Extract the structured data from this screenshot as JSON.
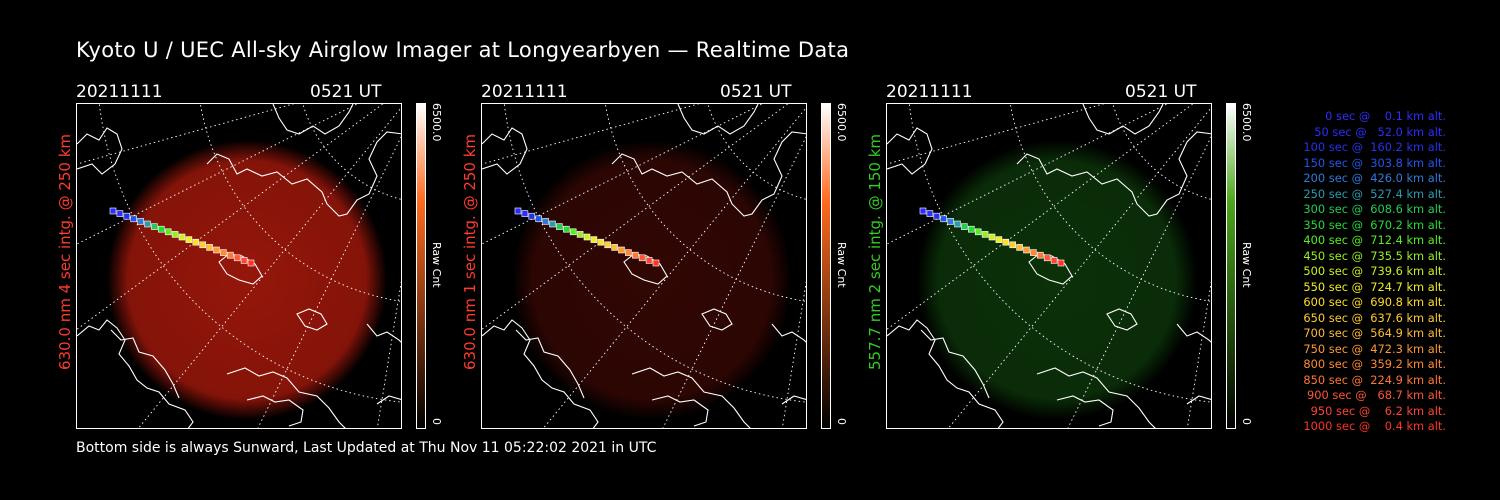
{
  "title": "Kyoto U / UEC All-sky Airglow Imager at Longyearbyen — Realtime Data",
  "panels": [
    {
      "date": "20211111",
      "time": "0521 UT",
      "label": "630.0 nm 4 sec intg. @ 250 km",
      "label_color": "#ff3b2a",
      "cbar_max": "6500.0",
      "cbar_min": "0",
      "cbar_unit": "Raw Cnt",
      "cbar_color": "#ff6a1e",
      "glow": "#b01a0c"
    },
    {
      "date": "20211111",
      "time": "0521 UT",
      "label": "630.0 nm 1 sec intg. @ 250 km",
      "label_color": "#ff3b2a",
      "cbar_max": "6500.0",
      "cbar_min": "0",
      "cbar_unit": "Raw Cnt",
      "cbar_color": "#ff6a1e",
      "glow": "#3a0804"
    },
    {
      "date": "20211111",
      "time": "0521 UT",
      "label": "557.7 nm 2 sec intg. @ 150 km",
      "label_color": "#33cc22",
      "cbar_max": "6500.0",
      "cbar_min": "0",
      "cbar_unit": "Raw Cnt",
      "cbar_color": "#4aa81a",
      "glow": "#0d3a0a"
    }
  ],
  "footer": "Bottom side is always Sunward, Last Updated at Thu Nov 11 05:22:02 2021 in UTC",
  "legend": [
    {
      "text": "   0 sec @    0.1 km alt.",
      "color": "#2d2dff"
    },
    {
      "text": "  50 sec @   52.0 km alt.",
      "color": "#2d2dff"
    },
    {
      "text": " 100 sec @  160.2 km alt.",
      "color": "#2233ee"
    },
    {
      "text": " 150 sec @  303.8 km alt.",
      "color": "#2255ee"
    },
    {
      "text": " 200 sec @  426.0 km alt.",
      "color": "#2f7bd8"
    },
    {
      "text": " 250 sec @  527.4 km alt.",
      "color": "#2a9cb0"
    },
    {
      "text": " 300 sec @  608.6 km alt.",
      "color": "#22cc55"
    },
    {
      "text": " 350 sec @  670.2 km alt.",
      "color": "#22dd33"
    },
    {
      "text": " 400 sec @  712.4 km alt.",
      "color": "#55ee22"
    },
    {
      "text": " 450 sec @  735.5 km alt.",
      "color": "#99ee22"
    },
    {
      "text": " 500 sec @  739.6 km alt.",
      "color": "#ccee22"
    },
    {
      "text": " 550 sec @  724.7 km alt.",
      "color": "#eeee22"
    },
    {
      "text": " 600 sec @  690.8 km alt.",
      "color": "#ffdd22"
    },
    {
      "text": " 650 sec @  637.6 km alt.",
      "color": "#ffcc33"
    },
    {
      "text": " 700 sec @  564.9 km alt.",
      "color": "#ffbb33"
    },
    {
      "text": " 750 sec @  472.3 km alt.",
      "color": "#ff9933"
    },
    {
      "text": " 800 sec @  359.2 km alt.",
      "color": "#ff8833"
    },
    {
      "text": " 850 sec @  224.9 km alt.",
      "color": "#ff7733"
    },
    {
      "text": " 900 sec @   68.7 km alt.",
      "color": "#ff5533"
    },
    {
      "text": " 950 sec @    6.2 km alt.",
      "color": "#ff4433"
    },
    {
      "text": "1000 sec @    0.4 km alt.",
      "color": "#ff3322"
    }
  ]
}
